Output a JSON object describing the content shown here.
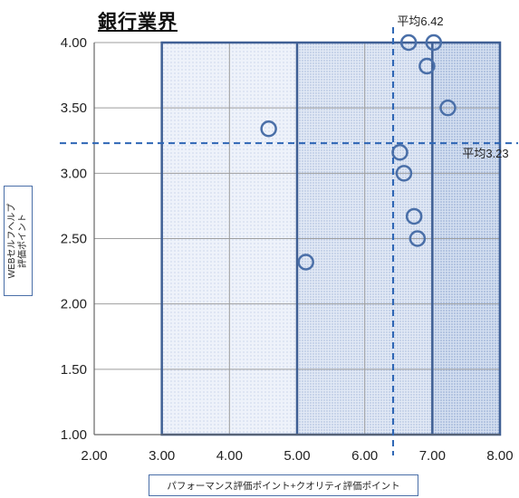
{
  "chart_data": {
    "type": "scatter",
    "title": "銀行業界",
    "xlabel": "パフォーマンス評価ポイント+クオリティ評価ポイント",
    "ylabel_lines": [
      "WEBセルフヘルプ",
      "評価ポイント"
    ],
    "xlim": [
      2.0,
      8.0
    ],
    "ylim": [
      1.0,
      4.0
    ],
    "x_ticks": [
      "2.00",
      "3.00",
      "4.00",
      "5.00",
      "6.00",
      "7.00",
      "8.00"
    ],
    "y_ticks": [
      "1.00",
      "1.50",
      "2.00",
      "2.50",
      "3.00",
      "3.50",
      "4.00"
    ],
    "grid": true,
    "points": [
      {
        "x": 6.65,
        "y": 4.0
      },
      {
        "x": 7.02,
        "y": 4.0
      },
      {
        "x": 6.92,
        "y": 3.82
      },
      {
        "x": 7.23,
        "y": 3.5
      },
      {
        "x": 4.58,
        "y": 3.34
      },
      {
        "x": 6.52,
        "y": 3.16
      },
      {
        "x": 6.58,
        "y": 3.0
      },
      {
        "x": 6.73,
        "y": 2.67
      },
      {
        "x": 6.78,
        "y": 2.5
      },
      {
        "x": 5.13,
        "y": 2.32
      }
    ],
    "mean_x": {
      "value": 6.42,
      "label": "平均6.42"
    },
    "mean_y": {
      "value": 3.23,
      "label": "平均3.23"
    },
    "region_boundaries_x": [
      3.0,
      5.0,
      7.0,
      8.0
    ],
    "colors": {
      "marker": "#4a6fa8",
      "mean_line": "#2e66b5",
      "region_border": "#3f5f94",
      "grid": "#9e9e9e"
    }
  }
}
